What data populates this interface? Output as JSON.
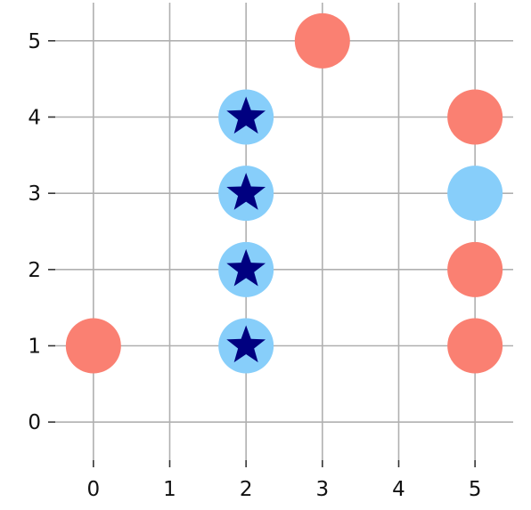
{
  "chart_data": {
    "type": "scatter",
    "title": "",
    "xlabel": "",
    "ylabel": "",
    "xlim": [
      -0.5,
      5.5
    ],
    "ylim": [
      -0.5,
      5.5
    ],
    "grid": true,
    "x_ticks": [
      0,
      1,
      2,
      3,
      4,
      5
    ],
    "y_ticks": [
      0,
      1,
      2,
      3,
      4,
      5
    ],
    "x_tick_labels": [
      "0",
      "1",
      "2",
      "3",
      "4",
      "5"
    ],
    "y_tick_labels": [
      "0",
      "1",
      "2",
      "3",
      "4",
      "5"
    ],
    "points": [
      {
        "x": 0,
        "y": 1,
        "color": "#fa8072",
        "marker": "circle"
      },
      {
        "x": 2,
        "y": 1,
        "color": "#87cefa",
        "marker": "circle"
      },
      {
        "x": 2,
        "y": 2,
        "color": "#87cefa",
        "marker": "circle"
      },
      {
        "x": 2,
        "y": 3,
        "color": "#87cefa",
        "marker": "circle"
      },
      {
        "x": 2,
        "y": 4,
        "color": "#87cefa",
        "marker": "circle"
      },
      {
        "x": 3,
        "y": 5,
        "color": "#fa8072",
        "marker": "circle"
      },
      {
        "x": 5,
        "y": 1,
        "color": "#fa8072",
        "marker": "circle"
      },
      {
        "x": 5,
        "y": 2,
        "color": "#fa8072",
        "marker": "circle"
      },
      {
        "x": 5,
        "y": 3,
        "color": "#87cefa",
        "marker": "circle"
      },
      {
        "x": 5,
        "y": 4,
        "color": "#fa8072",
        "marker": "circle"
      }
    ],
    "star_markers": [
      {
        "x": 2,
        "y": 1,
        "color": "#000080"
      },
      {
        "x": 2,
        "y": 2,
        "color": "#000080"
      },
      {
        "x": 2,
        "y": 3,
        "color": "#000080"
      },
      {
        "x": 2,
        "y": 4,
        "color": "#000080"
      }
    ],
    "colors": {
      "grid": "#b0b0b0",
      "axis": "#333333",
      "salmon": "#fa8072",
      "lightskyblue": "#87cefa",
      "navy": "#000080"
    }
  }
}
